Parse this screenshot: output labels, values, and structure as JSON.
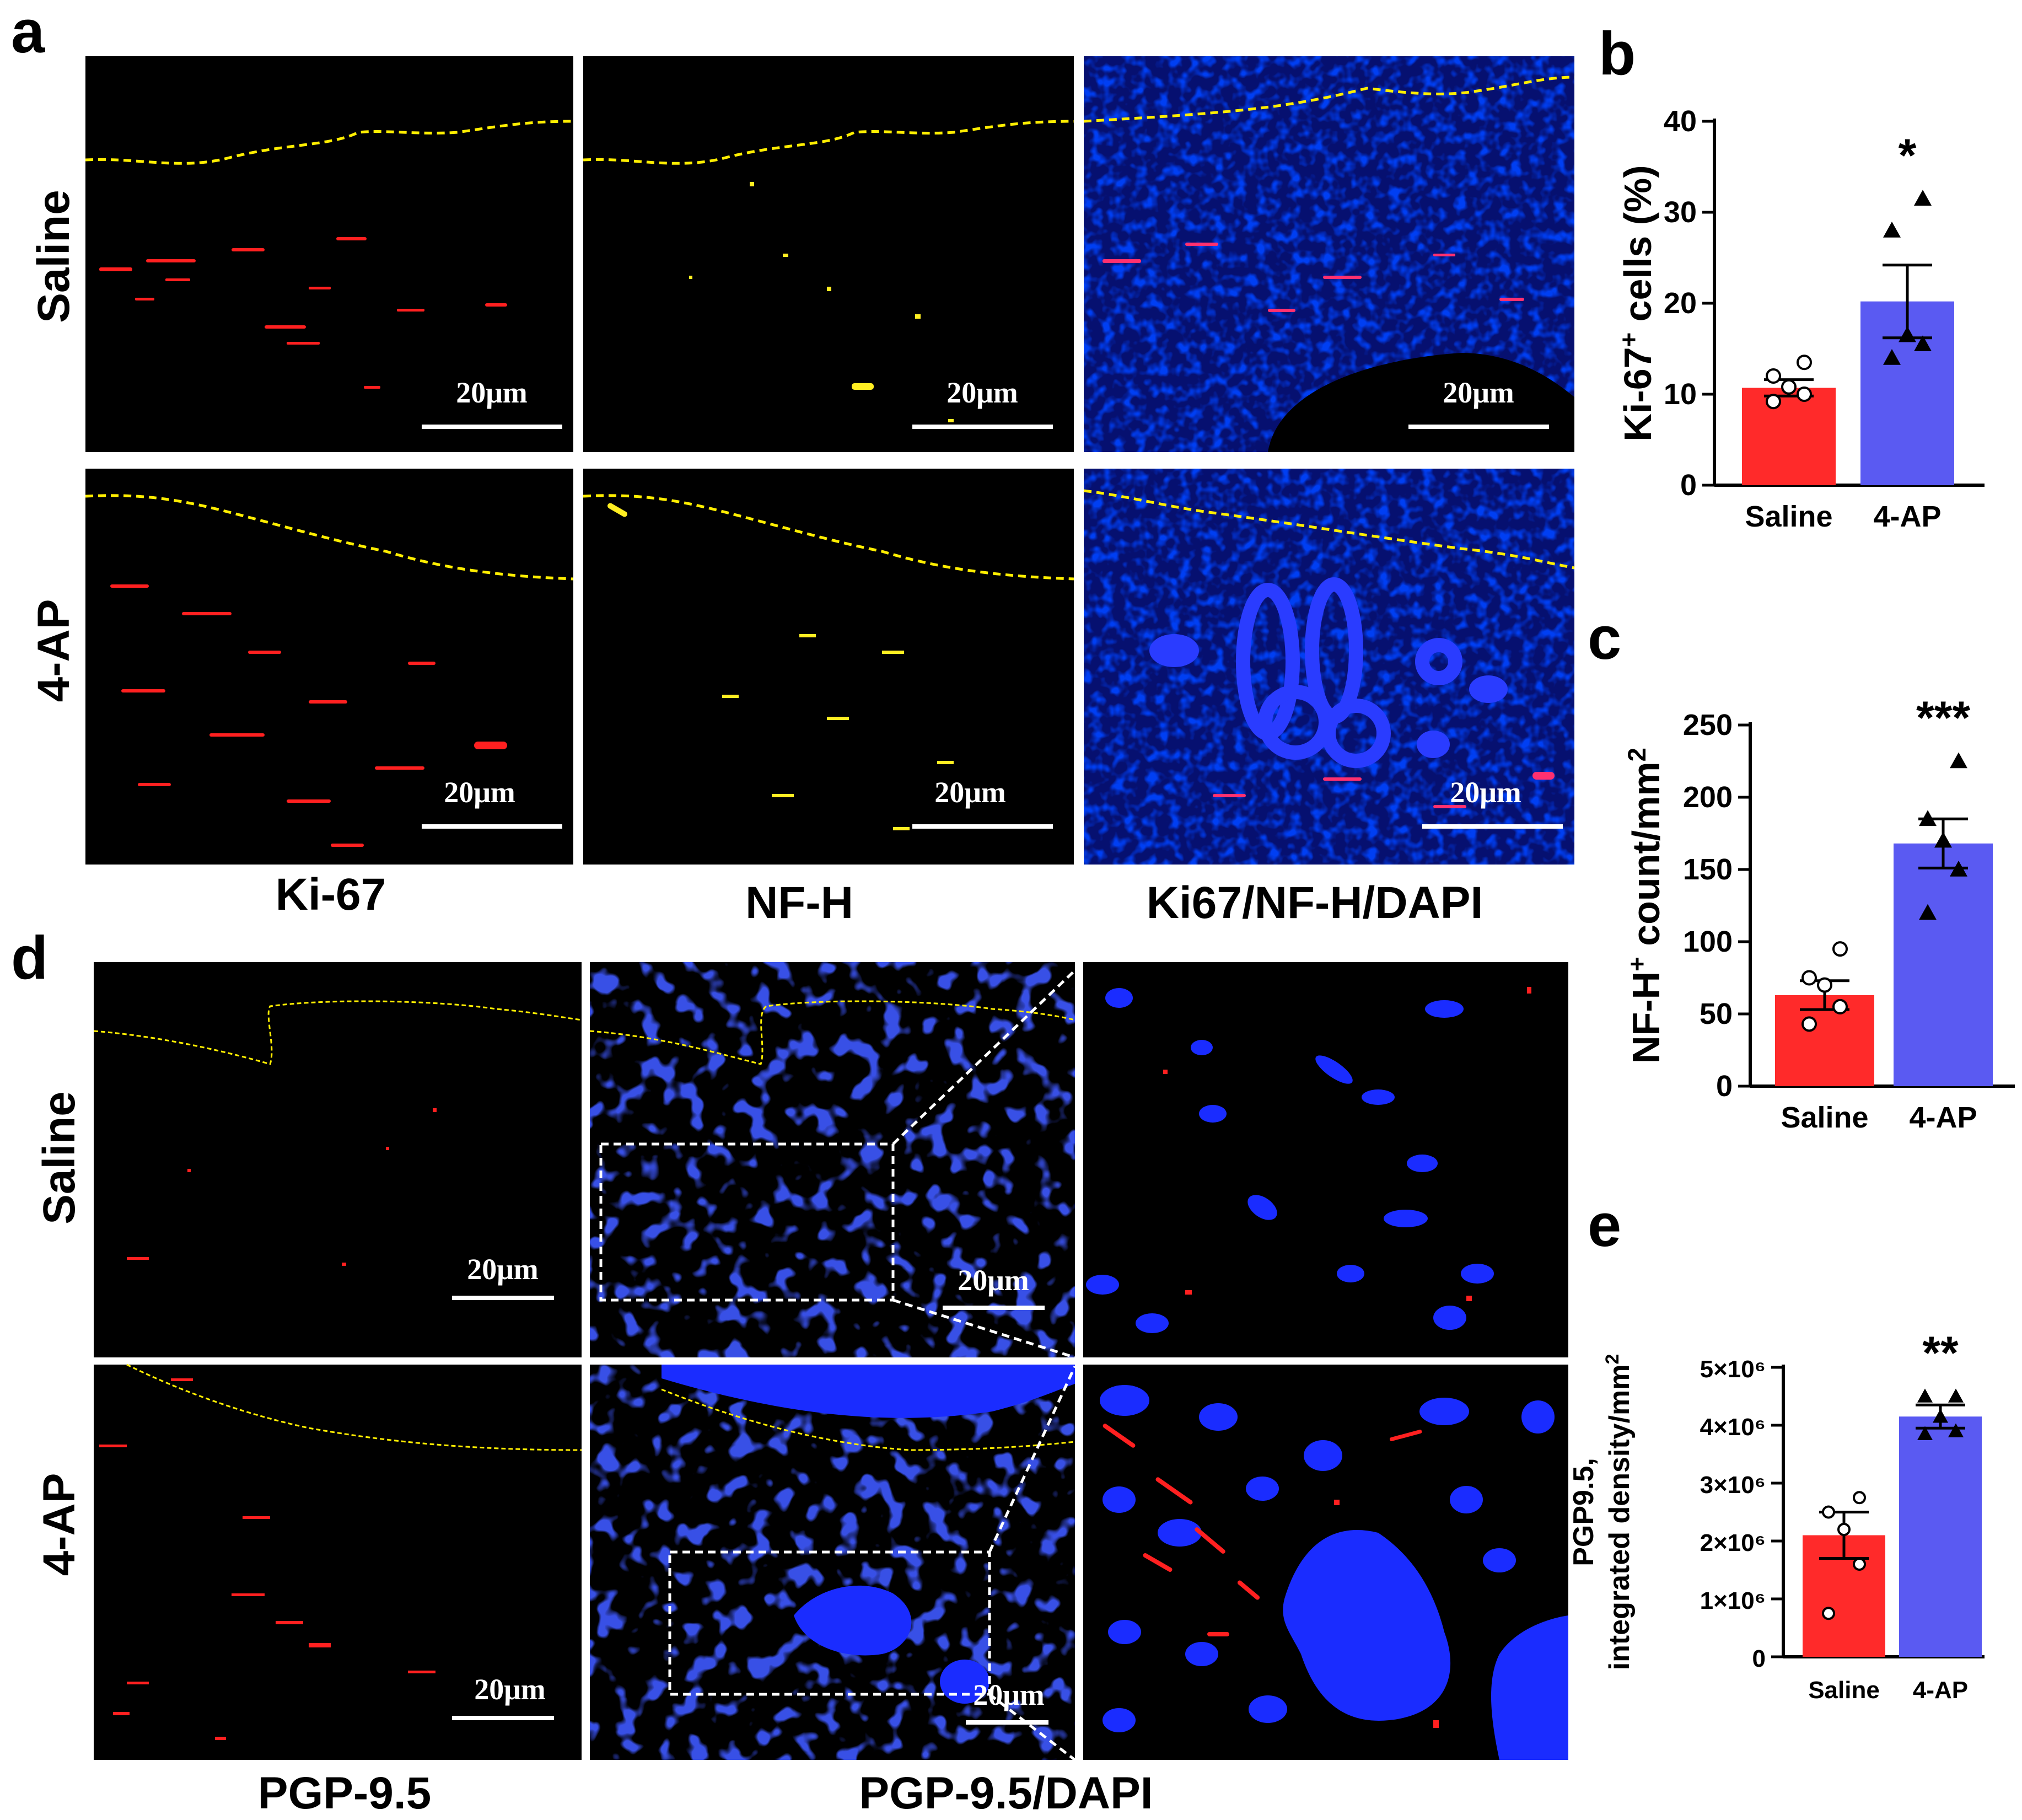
{
  "panels": {
    "a": {
      "letter": "a",
      "row_labels": [
        "Saline",
        "4-AP"
      ],
      "column_labels": [
        "Ki-67",
        "NF-H",
        "Ki67/NF-H/DAPI"
      ],
      "scale_bar": "20μm"
    },
    "d": {
      "letter": "d",
      "row_labels": [
        "Saline",
        "4-AP"
      ],
      "column_labels": [
        "PGP-9.5",
        "PGP-9.5/DAPI"
      ],
      "scale_bar": "20μm"
    }
  },
  "colors": {
    "saline_bar": "#ff2a2a",
    "fourap_bar": "#5a5af2",
    "dashed_boundary": "#ffee00",
    "nuclei": "#1a2cff",
    "marker": "#ff1a1a"
  },
  "chart_data": [
    {
      "id": "b",
      "letter": "b",
      "type": "bar",
      "categories": [
        "Saline",
        "4-AP"
      ],
      "values": [
        10.7,
        20.2
      ],
      "sem": [
        0.9,
        4.0
      ],
      "points": [
        [
          9.2,
          10.0,
          10.8,
          12.0,
          13.5
        ],
        [
          14.0,
          15.5,
          16.5,
          28.0,
          31.5
        ]
      ],
      "markers": [
        "circle",
        "triangle"
      ],
      "ylabel_main": "Ki-67",
      "ylabel_sup": "+",
      "ylabel_rest": " cells (%)",
      "ylim": [
        0,
        40
      ],
      "yticks": [
        0,
        10,
        20,
        30,
        40
      ],
      "ytick_labels": [
        "0",
        "10",
        "20",
        "30",
        "40"
      ],
      "significance": "*"
    },
    {
      "id": "c",
      "letter": "c",
      "type": "bar",
      "categories": [
        "Saline",
        "4-AP"
      ],
      "values": [
        63,
        168
      ],
      "sem": [
        10,
        17
      ],
      "points": [
        [
          43,
          55,
          70,
          75,
          95
        ],
        [
          120,
          150,
          170,
          185,
          225
        ]
      ],
      "markers": [
        "circle",
        "triangle"
      ],
      "ylabel_main": "NF-H",
      "ylabel_sup": "+",
      "ylabel_rest": " count/mm",
      "ylabel_sup2": "2",
      "ylim": [
        0,
        250
      ],
      "yticks": [
        0,
        50,
        100,
        150,
        200,
        250
      ],
      "ytick_labels": [
        "0",
        "50",
        "100",
        "150",
        "200",
        "250"
      ],
      "significance": "***"
    },
    {
      "id": "e",
      "letter": "e",
      "type": "bar",
      "categories": [
        "Saline",
        "4-AP"
      ],
      "values": [
        2100000,
        4150000
      ],
      "sem": [
        400000,
        200000
      ],
      "points": [
        [
          750000,
          1600000,
          2200000,
          2500000,
          2750000
        ],
        [
          3850000,
          3900000,
          4150000,
          4500000,
          4500000
        ]
      ],
      "markers": [
        "circle",
        "triangle"
      ],
      "ylabel_line1": "PGP9.5,",
      "ylabel_line2": "integrated density/mm",
      "ylabel_sup2": "2",
      "ylim": [
        0,
        5000000
      ],
      "yticks": [
        0,
        1000000,
        2000000,
        3000000,
        4000000,
        5000000
      ],
      "ytick_labels": [
        "0",
        "1×10⁶",
        "2×10⁶",
        "3×10⁶",
        "4×10⁶",
        "5×10⁶"
      ],
      "significance": "**"
    }
  ]
}
